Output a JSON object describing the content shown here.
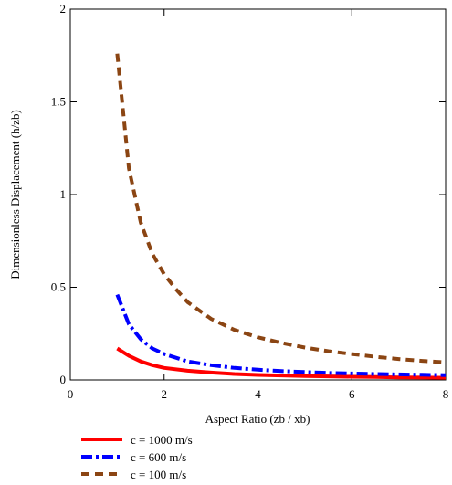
{
  "chart_data": {
    "type": "line",
    "xlabel": "Aspect Ratio (zb / xb)",
    "ylabel": "Dimensionless Displacement (h/zb)",
    "xlim": [
      0,
      8
    ],
    "ylim": [
      0,
      2
    ],
    "x_ticks": [
      "0",
      "2",
      "4",
      "6",
      "8"
    ],
    "y_ticks": [
      "0",
      "0.5",
      "1",
      "1.5",
      "2"
    ],
    "grid": false,
    "legend_position": "bottom-left",
    "series": [
      {
        "name": "c = 1000 m/s",
        "color": "#ff0000",
        "dash": "solid",
        "x": [
          1.0,
          1.25,
          1.5,
          1.75,
          2.0,
          2.5,
          3.0,
          3.5,
          4.0,
          4.5,
          5.0,
          5.5,
          6.0,
          6.5,
          7.0,
          7.5,
          8.0
        ],
        "y": [
          0.17,
          0.13,
          0.1,
          0.08,
          0.065,
          0.05,
          0.04,
          0.032,
          0.027,
          0.024,
          0.021,
          0.019,
          0.017,
          0.016,
          0.014,
          0.013,
          0.012
        ]
      },
      {
        "name": "c = 600 m/s",
        "color": "#0000ff",
        "dash": "dashdot",
        "x": [
          1.0,
          1.25,
          1.5,
          1.75,
          2.0,
          2.5,
          3.0,
          3.5,
          4.0,
          4.5,
          5.0,
          5.5,
          6.0,
          6.5,
          7.0,
          7.5,
          8.0
        ],
        "y": [
          0.46,
          0.3,
          0.22,
          0.17,
          0.14,
          0.1,
          0.08,
          0.065,
          0.055,
          0.048,
          0.043,
          0.038,
          0.035,
          0.032,
          0.03,
          0.028,
          0.026
        ]
      },
      {
        "name": "c = 100 m/s",
        "color": "#8b4513",
        "dash": "dashed",
        "x": [
          1.0,
          1.25,
          1.5,
          1.75,
          2.0,
          2.25,
          2.5,
          3.0,
          3.5,
          4.0,
          4.5,
          5.0,
          5.5,
          6.0,
          6.5,
          7.0,
          7.5,
          8.0
        ],
        "y": [
          1.76,
          1.14,
          0.85,
          0.68,
          0.57,
          0.49,
          0.42,
          0.33,
          0.27,
          0.23,
          0.2,
          0.175,
          0.155,
          0.14,
          0.125,
          0.113,
          0.103,
          0.095
        ]
      }
    ]
  }
}
